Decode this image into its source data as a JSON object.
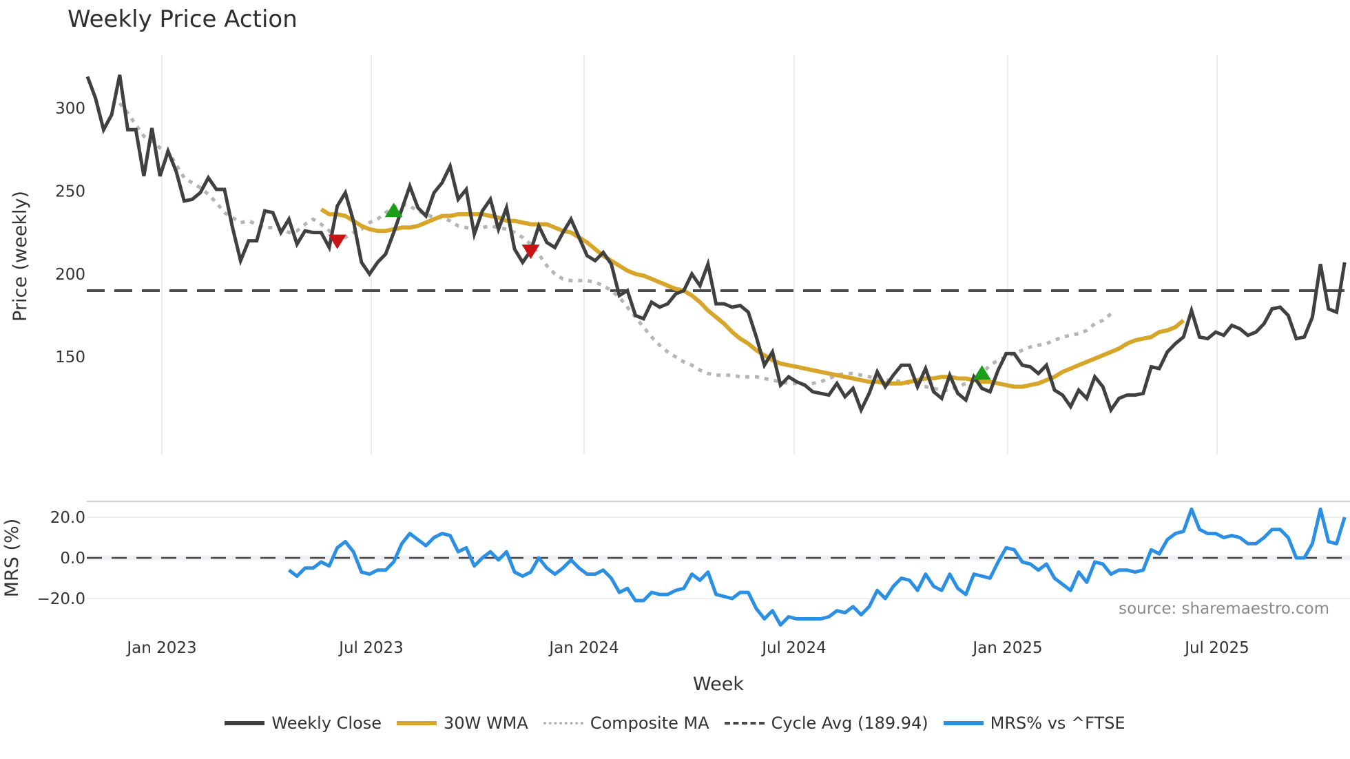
{
  "title": "Weekly Price Action",
  "chart_data": [
    {
      "type": "line",
      "panel": "price",
      "title": "Weekly Price Action",
      "xlabel": "Week",
      "ylabel": "Price (weekly)",
      "x_ticks": [
        "Jan 2023",
        "Jul 2023",
        "Jan 2024",
        "Jul 2024",
        "Jan 2025",
        "Jul 2025"
      ],
      "y_ticks": [
        150,
        200,
        250,
        300
      ],
      "ylim": [
        102,
        328
      ],
      "grid": "vertical",
      "series": [
        {
          "name": "Weekly Close",
          "color": "#404040",
          "start_index": 0,
          "values": [
            319,
            306,
            287,
            296,
            320,
            287,
            287,
            259,
            288,
            259,
            274,
            262,
            244,
            245,
            249,
            258,
            251,
            251,
            228,
            208,
            220,
            220,
            238,
            237,
            225,
            233,
            218,
            226,
            225,
            225,
            216,
            241,
            249,
            232,
            207,
            200,
            207,
            212,
            225,
            239,
            253,
            240,
            235,
            249,
            255,
            265,
            245,
            251,
            224,
            238,
            245,
            227,
            240,
            215,
            207,
            214,
            229,
            219,
            216,
            225,
            233,
            222,
            211,
            208,
            213,
            206,
            187,
            190,
            175,
            173,
            183,
            180,
            182,
            188,
            190,
            200,
            193,
            206,
            182,
            182,
            180,
            181,
            177,
            162,
            145,
            153,
            133,
            138,
            135,
            133,
            129,
            128,
            127,
            134,
            126,
            131,
            118,
            128,
            141,
            132,
            139,
            145,
            145,
            132,
            143,
            129,
            125,
            139,
            128,
            124,
            138,
            131,
            129,
            142,
            152,
            152,
            145,
            144,
            140,
            145,
            130,
            127,
            120,
            130,
            125,
            138,
            132,
            118,
            125,
            127,
            127,
            128,
            144,
            143,
            153,
            158,
            162,
            178,
            162,
            161,
            165,
            163,
            169,
            167,
            163,
            165,
            170,
            179,
            180,
            175,
            161,
            162,
            174,
            206,
            179,
            177,
            207
          ]
        },
        {
          "name": "30W WMA",
          "color": "#d6a52a",
          "start_index": 29,
          "values": [
            239,
            236,
            236,
            235,
            232,
            229,
            227,
            226,
            226,
            227,
            228,
            228,
            229,
            231,
            233,
            235,
            235,
            236,
            236,
            236,
            236,
            235,
            234,
            232,
            232,
            231,
            230,
            230,
            230,
            228,
            226,
            225,
            222,
            219,
            215,
            211,
            208,
            205,
            202,
            200,
            199,
            197,
            195,
            193,
            191,
            190,
            187,
            183,
            178,
            174,
            170,
            165,
            161,
            158,
            154,
            151,
            148,
            146,
            145,
            144,
            143,
            142,
            141,
            140,
            139,
            138,
            137,
            136,
            135,
            135,
            134,
            134,
            134,
            135,
            136,
            137,
            137,
            138,
            138,
            137,
            137,
            136,
            135,
            135,
            134,
            133,
            132,
            132,
            133,
            134,
            136,
            138,
            141,
            143,
            145,
            147,
            149,
            151,
            153,
            155,
            158,
            160,
            161,
            162,
            165,
            166,
            168,
            172
          ]
        },
        {
          "name": "Composite MA",
          "color": "#b5b5b5",
          "start_index": 4,
          "values": [
            303,
            297,
            290,
            283,
            280,
            276,
            274,
            266,
            258,
            255,
            252,
            248,
            243,
            237,
            234,
            231,
            232,
            230,
            228,
            228,
            227,
            225,
            226,
            230,
            233,
            230,
            226,
            222,
            222,
            225,
            227,
            231,
            233,
            237,
            240,
            242,
            241,
            238,
            236,
            234,
            234,
            232,
            229,
            228,
            227,
            228,
            229,
            228,
            227,
            225,
            222,
            218,
            212,
            205,
            200,
            197,
            196,
            196,
            196,
            195,
            193,
            190,
            186,
            180,
            174,
            168,
            162,
            157,
            153,
            150,
            147,
            145,
            142,
            140,
            139,
            139,
            139,
            138,
            138,
            138,
            137,
            136,
            135,
            134,
            134,
            133,
            134,
            135,
            137,
            139,
            140,
            140,
            139,
            138,
            137,
            136,
            136,
            135,
            134,
            133,
            132,
            131,
            130,
            130,
            132,
            134,
            136,
            140,
            145,
            148,
            150,
            152,
            154,
            156,
            157,
            158,
            160,
            162,
            163,
            164,
            166,
            170,
            172,
            176
          ]
        },
        {
          "name": "Cycle Avg (189.94)",
          "color": "#4a4a4a",
          "constant": 189.94
        }
      ]
    },
    {
      "type": "line",
      "panel": "mrs",
      "ylabel": "MRS (%)",
      "xlabel": "Week",
      "y_ticks": [
        "20.0",
        "0.0",
        "-20.0"
      ],
      "ylim": [
        -35,
        28
      ],
      "reference_line": 0,
      "series": [
        {
          "name": "MRS% vs ^FTSE",
          "color": "#2b8fe3",
          "start_index": 25,
          "values": [
            -6,
            -9,
            -5,
            -5,
            -2,
            -4,
            5,
            8,
            3,
            -7,
            -8,
            -6,
            -6,
            -2,
            7,
            12,
            9,
            6,
            10,
            12,
            11,
            3,
            5,
            -4,
            0,
            3,
            -1,
            3,
            -7,
            -9,
            -7,
            0,
            -5,
            -8,
            -5,
            -1,
            -5,
            -8,
            -8,
            -6,
            -10,
            -17,
            -15,
            -21,
            -21,
            -17,
            -18,
            -18,
            -16,
            -15,
            -8,
            -11,
            -7,
            -18,
            -19,
            -20,
            -17,
            -17,
            -25,
            -30,
            -26,
            -33,
            -29,
            -30,
            -30,
            -30,
            -30,
            -29,
            -26,
            -27,
            -24,
            -28,
            -24,
            -16,
            -20,
            -14,
            -10,
            -11,
            -16,
            -8,
            -14,
            -16,
            -8,
            -15,
            -18,
            -8,
            -9,
            -10,
            -2,
            5,
            4,
            -2,
            -3,
            -6,
            -3,
            -10,
            -13,
            -16,
            -7,
            -12,
            -2,
            -3,
            -8,
            -6,
            -6,
            -7,
            -6,
            4,
            2,
            9,
            12,
            13,
            24,
            14,
            12,
            12,
            10,
            11,
            10,
            7,
            7,
            10,
            14,
            14,
            10,
            0,
            0,
            7,
            24,
            8,
            7,
            20
          ]
        }
      ]
    }
  ],
  "price_axis": {
    "label": "Price (weekly)",
    "ticks": [
      "300",
      "250",
      "200",
      "150"
    ]
  },
  "mrs_axis": {
    "label": "MRS (%)",
    "ticks": [
      "20.0",
      "0.0",
      "−20.0"
    ]
  },
  "x_axis": {
    "label": "Week",
    "ticks": [
      "Jan 2023",
      "Jul 2023",
      "Jan 2024",
      "Jul 2024",
      "Jan 2025",
      "Jul 2025"
    ]
  },
  "signals": [
    {
      "type": "sell",
      "color": "#c81414",
      "week_index": 31,
      "value": 220
    },
    {
      "type": "buy",
      "color": "#1a9e1a",
      "week_index": 38,
      "value": 238
    },
    {
      "type": "sell",
      "color": "#c81414",
      "week_index": 55,
      "value": 214
    },
    {
      "type": "buy",
      "color": "#1a9e1a",
      "week_index": 111,
      "value": 140
    }
  ],
  "source": "source: sharemaestro.com",
  "legend": [
    {
      "label": "Weekly Close",
      "style": "solid",
      "color": "#404040"
    },
    {
      "label": "30W WMA",
      "style": "solid",
      "color": "#d6a52a"
    },
    {
      "label": "Composite MA",
      "style": "dotted",
      "color": "#b5b5b5"
    },
    {
      "label": "Cycle Avg (189.94)",
      "style": "dashed",
      "color": "#4a4a4a"
    },
    {
      "label": "MRS% vs ^FTSE",
      "style": "solid",
      "color": "#2b8fe3"
    }
  ]
}
